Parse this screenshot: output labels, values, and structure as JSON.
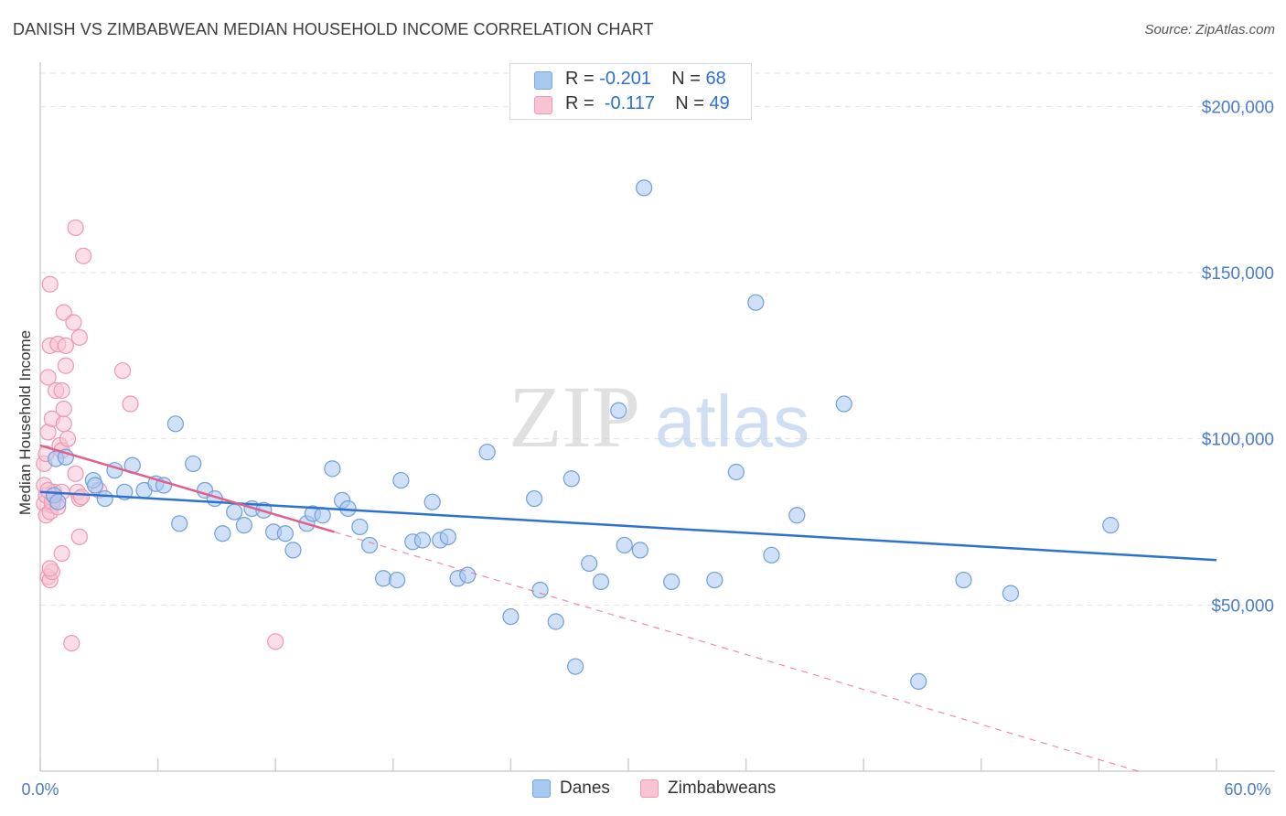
{
  "header": {
    "title": "DANISH VS ZIMBABWEAN MEDIAN HOUSEHOLD INCOME CORRELATION CHART",
    "source": "Source: ZipAtlas.com"
  },
  "legend": {
    "danes": {
      "r_label": "R = ",
      "r_value": "-0.201",
      "n_label": "N = ",
      "n_value": "68",
      "color": "#a9c8f0",
      "stroke": "#7aa6e0"
    },
    "zimbabweans": {
      "r_label": "R = ",
      "r_value": "-0.117",
      "n_label": "N = ",
      "n_value": "49",
      "color": "#f8c3d3",
      "stroke": "#ef9ab4"
    }
  },
  "watermark": {
    "zip": "ZIP",
    "atlas": "atlas"
  },
  "chart_data": {
    "type": "scatter",
    "ylabel": "Median Household Income",
    "xlim": [
      0,
      60
    ],
    "ylim": [
      0,
      210000
    ],
    "x_tick_labels": [
      "0.0%",
      "60.0%"
    ],
    "y_ticks": [
      {
        "value": 50000,
        "label": "$50,000"
      },
      {
        "value": 100000,
        "label": "$100,000"
      },
      {
        "value": 150000,
        "label": "$150,000"
      },
      {
        "value": 200000,
        "label": "$200,000"
      }
    ],
    "grid": true,
    "series": [
      {
        "name": "Danes",
        "color": "#a9c8f0",
        "stroke": "#6f9fdc",
        "line_color": "#2d72d2",
        "trend": {
          "x0": 0.0,
          "y0": 84000,
          "x1": 60.0,
          "y1": 63500
        },
        "points": [
          [
            0.7,
            83000
          ],
          [
            0.9,
            81000
          ],
          [
            0.8,
            94000
          ],
          [
            1.3,
            94500
          ],
          [
            2.7,
            87500
          ],
          [
            2.8,
            86000
          ],
          [
            3.3,
            82000
          ],
          [
            3.8,
            90500
          ],
          [
            4.3,
            84000
          ],
          [
            4.7,
            92000
          ],
          [
            5.3,
            84500
          ],
          [
            5.9,
            86500
          ],
          [
            6.3,
            86000
          ],
          [
            6.9,
            104500
          ],
          [
            7.1,
            74500
          ],
          [
            7.8,
            92500
          ],
          [
            8.4,
            84500
          ],
          [
            8.9,
            82000
          ],
          [
            9.3,
            71500
          ],
          [
            9.9,
            78000
          ],
          [
            10.4,
            74000
          ],
          [
            10.8,
            79000
          ],
          [
            11.4,
            78500
          ],
          [
            11.9,
            72000
          ],
          [
            12.5,
            71500
          ],
          [
            12.9,
            66500
          ],
          [
            13.6,
            74500
          ],
          [
            13.9,
            77500
          ],
          [
            14.4,
            77000
          ],
          [
            14.9,
            91000
          ],
          [
            15.4,
            81500
          ],
          [
            15.7,
            79000
          ],
          [
            16.3,
            73500
          ],
          [
            16.8,
            68000
          ],
          [
            17.5,
            58000
          ],
          [
            18.4,
            87500
          ],
          [
            18.2,
            57500
          ],
          [
            19.0,
            69000
          ],
          [
            19.5,
            69500
          ],
          [
            20.0,
            81000
          ],
          [
            20.4,
            69500
          ],
          [
            20.8,
            70500
          ],
          [
            21.3,
            58000
          ],
          [
            21.8,
            59000
          ],
          [
            22.8,
            96000
          ],
          [
            24.0,
            46500
          ],
          [
            25.2,
            82000
          ],
          [
            25.5,
            54500
          ],
          [
            26.3,
            45000
          ],
          [
            27.1,
            88000
          ],
          [
            27.3,
            31500
          ],
          [
            28.0,
            62500
          ],
          [
            28.6,
            57000
          ],
          [
            29.5,
            108500
          ],
          [
            29.8,
            68000
          ],
          [
            30.6,
            66500
          ],
          [
            30.8,
            175500
          ],
          [
            32.2,
            57000
          ],
          [
            34.4,
            57500
          ],
          [
            35.5,
            90000
          ],
          [
            36.5,
            141000
          ],
          [
            37.3,
            65000
          ],
          [
            38.6,
            77000
          ],
          [
            41.0,
            110500
          ],
          [
            44.8,
            27000
          ],
          [
            47.1,
            57500
          ],
          [
            49.5,
            53500
          ],
          [
            54.6,
            74000
          ]
        ]
      },
      {
        "name": "Zimbabweans",
        "color": "#f8c3d3",
        "stroke": "#ec98b2",
        "line_color": "#e0608a",
        "trend": {
          "x0": 0.0,
          "y0": 98000,
          "x1": 15.0,
          "y1": 72000
        },
        "dash": {
          "x0": 15.0,
          "y0": 72000,
          "x1": 56.0,
          "y1": 0
        },
        "points": [
          [
            0.2,
            86000
          ],
          [
            0.2,
            80500
          ],
          [
            0.3,
            77000
          ],
          [
            0.2,
            92500
          ],
          [
            0.3,
            95500
          ],
          [
            0.4,
            102000
          ],
          [
            0.4,
            118500
          ],
          [
            0.5,
            128000
          ],
          [
            0.4,
            58500
          ],
          [
            0.5,
            57500
          ],
          [
            0.6,
            60000
          ],
          [
            0.5,
            61000
          ],
          [
            0.6,
            106000
          ],
          [
            0.5,
            146500
          ],
          [
            0.6,
            80000
          ],
          [
            0.5,
            78000
          ],
          [
            0.7,
            84000
          ],
          [
            0.7,
            82000
          ],
          [
            0.8,
            114500
          ],
          [
            0.9,
            128500
          ],
          [
            1.0,
            98000
          ],
          [
            1.1,
            96500
          ],
          [
            1.1,
            114500
          ],
          [
            1.1,
            84000
          ],
          [
            1.1,
            65500
          ],
          [
            1.2,
            104500
          ],
          [
            1.2,
            109000
          ],
          [
            1.2,
            138000
          ],
          [
            1.3,
            122000
          ],
          [
            1.3,
            128000
          ],
          [
            1.4,
            100000
          ],
          [
            1.6,
            38500
          ],
          [
            1.7,
            135000
          ],
          [
            1.8,
            163500
          ],
          [
            1.8,
            89500
          ],
          [
            1.9,
            84000
          ],
          [
            2.0,
            70500
          ],
          [
            2.0,
            130500
          ],
          [
            2.0,
            82000
          ],
          [
            2.1,
            82500
          ],
          [
            2.2,
            155000
          ],
          [
            3.0,
            84500
          ],
          [
            4.2,
            120500
          ],
          [
            4.6,
            110500
          ],
          [
            12.0,
            39000
          ],
          [
            0.3,
            83000
          ],
          [
            0.6,
            81000
          ],
          [
            0.9,
            79500
          ],
          [
            0.4,
            84500
          ]
        ]
      }
    ]
  }
}
